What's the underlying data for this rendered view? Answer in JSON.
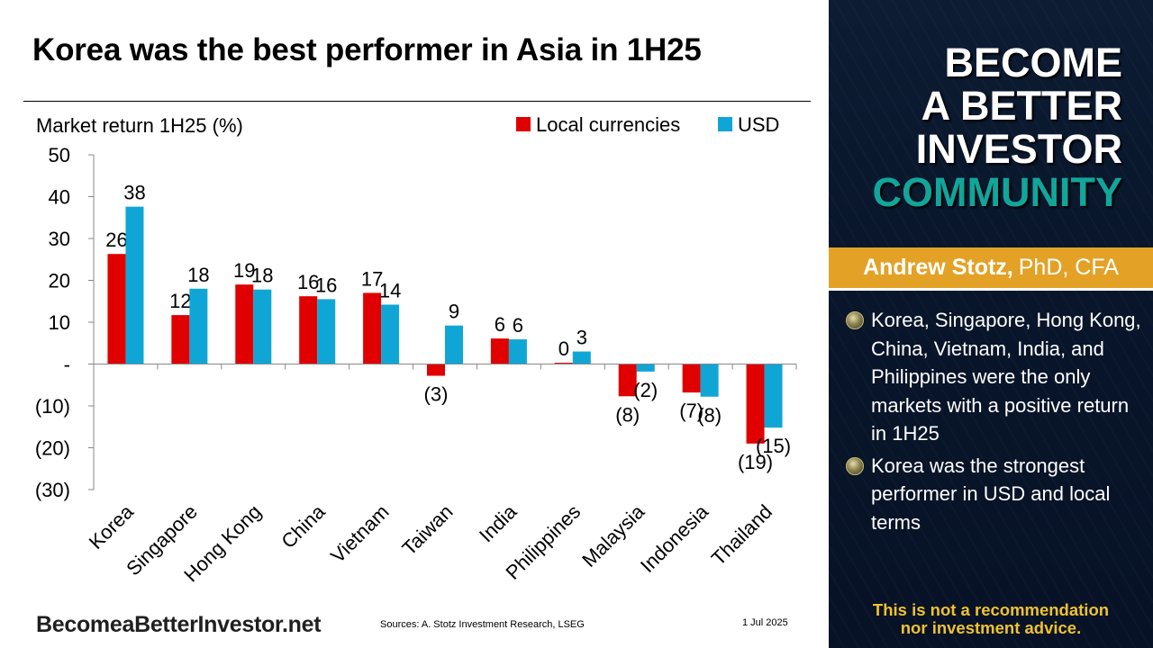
{
  "slide": {
    "title": "Korea was the best performer in Asia in 1H25"
  },
  "footer": {
    "brand": "BecomeaBetterInvestor.net",
    "sources": "Sources: A. Stotz Investment Research, LSEG",
    "date": "1 Jul 2025"
  },
  "sidebar": {
    "brand_lines": [
      "BECOME",
      "A BETTER",
      "INVESTOR",
      "COMMUNITY"
    ],
    "author_name": "Andrew Stotz,",
    "author_credentials": "PhD, CFA",
    "bullets": [
      "Korea, Singapore, Hong Kong, China, Vietnam, India, and Philippines were the only markets with a positive return in 1H25",
      "Korea was the strongest performer in USD and local terms"
    ],
    "disclaimer_line1": "This is not a recommendation",
    "disclaimer_line2": "nor investment advice.",
    "colors": {
      "accent_teal": "#12a59a",
      "band_orange": "#e3a226",
      "disclaimer_yellow": "#f0c230"
    }
  },
  "chart_data": {
    "type": "bar",
    "ylabel": "Market return 1H25 (%)",
    "ylim": [
      -30,
      50
    ],
    "yticks": [
      50,
      40,
      30,
      20,
      10,
      0,
      -10,
      -20,
      -30
    ],
    "ytick_labels": [
      "50",
      "40",
      "30",
      "20",
      "10",
      "-",
      "(10)",
      "(20)",
      "(30)"
    ],
    "categories": [
      "Korea",
      "Singapore",
      "Hong Kong",
      "China",
      "Vietnam",
      "Taiwan",
      "India",
      "Philippines",
      "Malaysia",
      "Indonesia",
      "Thailand"
    ],
    "series": [
      {
        "name": "Local currencies",
        "color": "#e00000",
        "values": [
          26.3,
          11.7,
          19.0,
          16.2,
          17.0,
          -2.8,
          6.1,
          0.3,
          -7.7,
          -6.8,
          -19.0
        ],
        "labels": [
          "26",
          "12",
          "19",
          "16",
          "17",
          "(3)",
          "6",
          "0",
          "(8)",
          "(7)",
          "(19)"
        ]
      },
      {
        "name": "USD",
        "color": "#0fa6d6",
        "values": [
          37.6,
          18.0,
          17.8,
          15.5,
          14.2,
          9.2,
          5.9,
          3.0,
          -1.8,
          -7.8,
          -15.2
        ],
        "labels": [
          "38",
          "18",
          "18",
          "16",
          "14",
          "9",
          "6",
          "3",
          "(2)",
          "(8)",
          "(15)"
        ]
      }
    ],
    "legend_position": "top-right",
    "grid": false
  }
}
